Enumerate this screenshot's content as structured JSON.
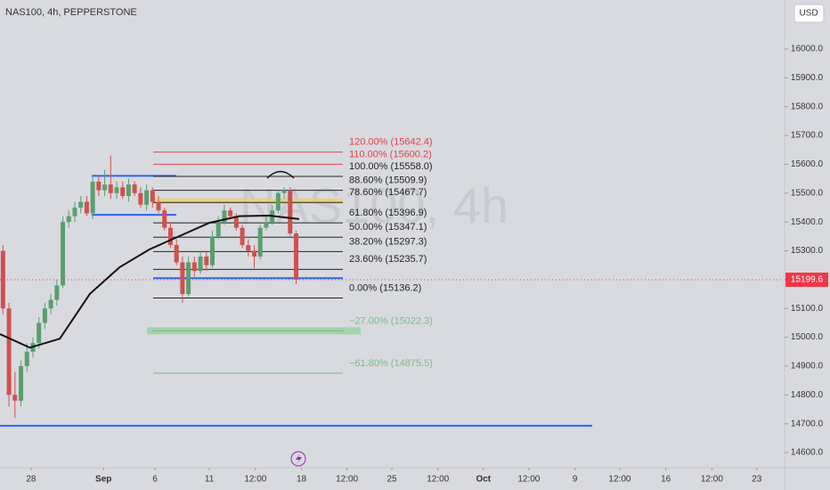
{
  "chart_data": {
    "type": "candlestick",
    "title": "NAS100, 4h, PEPPERSTONE",
    "watermark": "NAS100, 4h",
    "currency": "USD",
    "last_price": {
      "value": 15199.6,
      "label": "15199.6",
      "color": "#f23645"
    },
    "up_color": "#5a9e70",
    "down_color": "#d0504f",
    "ylim": [
      14547.5,
      16170
    ],
    "xlim": [
      0,
      131
    ],
    "yticks": [
      {
        "value": 14600,
        "label": "14600.0"
      },
      {
        "value": 14700,
        "label": "14700.0"
      },
      {
        "value": 14800,
        "label": "14800.0"
      },
      {
        "value": 14900,
        "label": "14900.0"
      },
      {
        "value": 15000,
        "label": "15000.0"
      },
      {
        "value": 15100,
        "label": "15100.0"
      },
      {
        "value": 15200,
        "label": "15200.0"
      },
      {
        "value": 15300,
        "label": "15300.0"
      },
      {
        "value": 15400,
        "label": "15400.0"
      },
      {
        "value": 15500,
        "label": "15500.0"
      },
      {
        "value": 15600,
        "label": "15600.0"
      },
      {
        "value": 15700,
        "label": "15700.0"
      },
      {
        "value": 15800,
        "label": "15800.0"
      },
      {
        "value": 15900,
        "label": "15900.0"
      },
      {
        "value": 16000,
        "label": "16000.0"
      }
    ],
    "xticks": [
      {
        "value": 5.2,
        "label": "28"
      },
      {
        "value": 17.3,
        "label": "Sep"
      },
      {
        "value": 25.9,
        "label": "6"
      },
      {
        "value": 35,
        "label": "11"
      },
      {
        "value": 42.7,
        "label": "12:00"
      },
      {
        "value": 50.4,
        "label": "18"
      },
      {
        "value": 58,
        "label": "12:00"
      },
      {
        "value": 65.5,
        "label": "25"
      },
      {
        "value": 73.2,
        "label": "12:00"
      },
      {
        "value": 80.8,
        "label": "Oct"
      },
      {
        "value": 88.4,
        "label": "12:00"
      },
      {
        "value": 96.1,
        "label": "9"
      },
      {
        "value": 103.6,
        "label": "12:00"
      },
      {
        "value": 111.3,
        "label": "16"
      },
      {
        "value": 119,
        "label": "12:00"
      },
      {
        "value": 126.5,
        "label": "23"
      }
    ],
    "x": [
      0.5,
      1.5,
      2.5,
      3.5,
      4.5,
      5.5,
      6.5,
      7.5,
      8.5,
      9.5,
      10.5,
      11.5,
      12.5,
      13.5,
      14.5,
      15.5,
      16.5,
      17.5,
      18.5,
      19.5,
      20.5,
      21.5,
      22.5,
      23.5,
      24.5,
      25.5,
      26.5,
      27.5,
      28.5,
      29.5,
      30.5,
      31.5,
      32.5,
      33.5,
      34.5,
      35.5,
      36.5,
      37.5,
      38.5,
      39.5,
      40.5,
      41.5,
      42.5,
      43.5,
      44.5,
      45.5,
      46.5,
      47.5,
      48.5,
      49.5
    ],
    "open": [
      15300,
      15100,
      14800,
      14780,
      14900,
      14950,
      14980,
      15050,
      15100,
      15130,
      15180,
      15400,
      15420,
      15450,
      15470,
      15430,
      15540,
      15510,
      15530,
      15500,
      15520,
      15490,
      15530,
      15500,
      15460,
      15510,
      15470,
      15440,
      15380,
      15320,
      15260,
      15150,
      15260,
      15230,
      15280,
      15250,
      15350,
      15400,
      15440,
      15420,
      15380,
      15320,
      15300,
      15280,
      15380,
      15400,
      15440,
      15500,
      15510,
      15360
    ],
    "high": [
      15320,
      15120,
      14880,
      14920,
      14980,
      15000,
      15070,
      15120,
      15150,
      15200,
      15420,
      15440,
      15470,
      15490,
      15490,
      15560,
      15560,
      15580,
      15630,
      15540,
      15540,
      15550,
      15540,
      15520,
      15530,
      15520,
      15490,
      15450,
      15400,
      15340,
      15280,
      15280,
      15280,
      15300,
      15300,
      15370,
      15420,
      15460,
      15450,
      15430,
      15390,
      15340,
      15320,
      15390,
      15420,
      15460,
      15510,
      15520,
      15520,
      15370
    ],
    "low": [
      15080,
      14760,
      14720,
      14760,
      14880,
      14930,
      14960,
      15030,
      15080,
      15110,
      15170,
      15380,
      15400,
      15430,
      15420,
      15410,
      15490,
      15490,
      15480,
      15480,
      15480,
      15470,
      15490,
      15450,
      15440,
      15450,
      15430,
      15370,
      15310,
      15250,
      15120,
      15140,
      15210,
      15220,
      15230,
      15240,
      15340,
      15390,
      15410,
      15370,
      15310,
      15280,
      15240,
      15270,
      15370,
      15390,
      15430,
      15480,
      15350,
      15185
    ],
    "close": [
      15100,
      14800,
      14780,
      14900,
      14950,
      14980,
      15050,
      15100,
      15130,
      15180,
      15400,
      15420,
      15450,
      15470,
      15430,
      15540,
      15510,
      15530,
      15500,
      15520,
      15490,
      15530,
      15500,
      15460,
      15510,
      15470,
      15440,
      15380,
      15320,
      15260,
      15150,
      15260,
      15230,
      15280,
      15250,
      15350,
      15400,
      15440,
      15420,
      15380,
      15320,
      15300,
      15280,
      15380,
      15400,
      15440,
      15500,
      15510,
      15360,
      15199.6
    ],
    "ma": {
      "color": "#111111",
      "x": [
        0,
        5,
        10,
        15,
        20,
        25,
        30,
        35,
        40,
        45,
        50
      ],
      "values": [
        15011,
        14964,
        14995,
        15150,
        15243,
        15305,
        15351,
        15397,
        15420,
        15422,
        15410
      ]
    },
    "fib_levels": [
      {
        "label": "120.00% (15642.4)",
        "value": 15642.4,
        "color": "#e0404f"
      },
      {
        "label": "110.00% (15600.2)",
        "value": 15600.2,
        "color": "#e0404f"
      },
      {
        "label": "100.00% (15558.0)",
        "value": 15558.0,
        "color": "#222222"
      },
      {
        "label": "88.60% (15509.9)",
        "value": 15509.9,
        "color": "#222222"
      },
      {
        "label": "78.60% (15467.7)",
        "value": 15467.7,
        "color": "#222222"
      },
      {
        "label": "61.80% (15396.9)",
        "value": 15396.9,
        "color": "#222222"
      },
      {
        "label": "50.00% (15347.1)",
        "value": 15347.1,
        "color": "#222222"
      },
      {
        "label": "38.20% (15297.3)",
        "value": 15297.3,
        "color": "#222222"
      },
      {
        "label": "23.60% (15235.7)",
        "value": 15235.7,
        "color": "#222222"
      },
      {
        "label": "0.00% (15136.2)",
        "value": 15136.2,
        "color": "#222222"
      },
      {
        "label": "−27.00% (15022.3)",
        "value": 15022.3,
        "color": "#7fb98a"
      },
      {
        "label": "−61.80% (14875.5)",
        "value": 14875.5,
        "color": "#7fb98a"
      }
    ],
    "drawings": [
      {
        "value": 15560,
        "color": "#2962ff"
      },
      {
        "value": 15425,
        "color": "#2962ff"
      },
      {
        "value": 15205,
        "color": "#2962ff"
      },
      {
        "value": 14693,
        "color": "#2962ff"
      },
      {
        "value": 15472,
        "color": "#f0d060"
      }
    ]
  }
}
